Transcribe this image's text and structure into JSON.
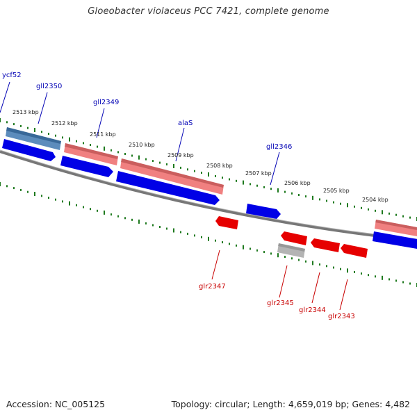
{
  "title": "Gloeobacter violaceus PCC 7421, complete genome",
  "footer": {
    "accession": "Accession: NC_005125",
    "topology": "Topology: circular; Length: 4,659,019 bp; Genes: 4,482"
  },
  "colors": {
    "backbone": "#777777",
    "tick": "#1f7a1f",
    "upper_label": "#0000b4",
    "lower_label": "#c80000",
    "cds_forward": "#0000e6",
    "rna_forward": "#5c8cbc",
    "rna_reverse": "#f08080",
    "cds_reverse": "#e60000",
    "pseudo": "#b4b4b4"
  },
  "position_labels": [
    "2513 kbp",
    "2512 kbp",
    "2511 kbp",
    "2510 kbp",
    "2509 kbp",
    "2508 kbp",
    "2507 kbp",
    "2506 kbp",
    "2505 kbp",
    "2504 kbp"
  ],
  "upper_genes": [
    {
      "name": "ycf52",
      "color": "upper_label"
    },
    {
      "name": "gll2350",
      "color": "upper_label"
    },
    {
      "name": "gll2349",
      "color": "upper_label"
    },
    {
      "name": "alaS",
      "color": "upper_label"
    },
    {
      "name": "gll2346",
      "color": "upper_label"
    }
  ],
  "lower_genes": [
    {
      "name": "glr2347",
      "color": "lower_label"
    },
    {
      "name": "glr2345",
      "color": "lower_label"
    },
    {
      "name": "glr2344",
      "color": "lower_label"
    },
    {
      "name": "glr2343",
      "color": "lower_label"
    }
  ]
}
